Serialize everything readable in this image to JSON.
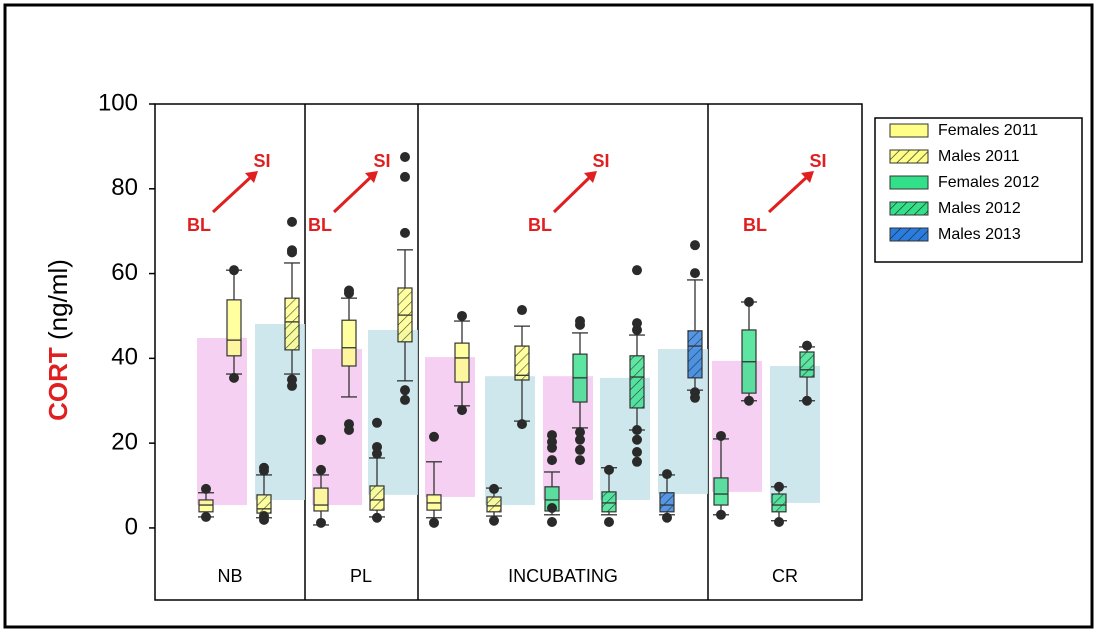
{
  "chart_data": {
    "type": "box",
    "ylabel_main": "CORT",
    "ylabel_unit": "(ng/ml)",
    "ylim": [
      -17,
      100
    ],
    "yticks": [
      0,
      20,
      40,
      60,
      80,
      100
    ],
    "series": [
      {
        "name": "Females 2011",
        "color": "#ffff88",
        "hatched": false
      },
      {
        "name": "Males 2011",
        "color": "#ffff88",
        "hatched": true
      },
      {
        "name": "Females 2012",
        "color": "#33e08a",
        "hatched": false
      },
      {
        "name": "Males 2012",
        "color": "#33e08a",
        "hatched": true
      },
      {
        "name": "Males 2013",
        "color": "#2a7de0",
        "hatched": true
      }
    ],
    "band_colors": [
      "#f5c8f0",
      "#c4e3ea"
    ],
    "stages": [
      {
        "label": "NB",
        "annotation": {
          "from": "BL",
          "to": "SI"
        },
        "groups": [
          {
            "series": 0,
            "band": [
              5.4,
              44.8
            ],
            "BL": {
              "low": 2.6,
              "q1": 3.8,
              "median": 5.4,
              "q3": 6.6,
              "high": 8.3,
              "outliers": [
                9.2,
                2.6
              ]
            },
            "SI": {
              "low": 36.3,
              "q1": 40.6,
              "median": 44.3,
              "q3": 53.8,
              "high": 60.8,
              "outliers": [
                35.4,
                60.8
              ]
            }
          },
          {
            "series": 1,
            "band": [
              6.6,
              48.1
            ],
            "BL": {
              "low": 2.4,
              "q1": 3.5,
              "median": 4.5,
              "q3": 7.8,
              "high": 12.5,
              "outliers": [
                14.2,
                13.5,
                1.9,
                2.8
              ]
            },
            "SI": {
              "low": 36.3,
              "q1": 42,
              "median": 48.6,
              "q3": 54.2,
              "high": 62.5,
              "outliers": [
                33.5,
                35,
                65,
                65.5,
                72.2
              ]
            }
          }
        ]
      },
      {
        "label": "PL",
        "annotation": {
          "from": "BL",
          "to": "SI"
        },
        "groups": [
          {
            "series": 0,
            "band": [
              5.4,
              42.2
            ],
            "BL": {
              "low": 0.7,
              "q1": 4,
              "median": 5.4,
              "q3": 9.4,
              "high": 12.5,
              "outliers": [
                20.8,
                13.7,
                1.2
              ]
            },
            "SI": {
              "low": 30.9,
              "q1": 38.2,
              "median": 42.5,
              "q3": 49,
              "high": 54.2,
              "outliers": [
                24.5,
                23.1,
                55.4,
                56
              ]
            }
          },
          {
            "series": 1,
            "band": [
              7.8,
              46.7
            ],
            "BL": {
              "low": 2.6,
              "q1": 4.2,
              "median": 6.6,
              "q3": 9.9,
              "high": 16.5,
              "outliers": [
                24.8,
                19.1,
                17.5,
                2.4
              ]
            },
            "SI": {
              "low": 34.7,
              "q1": 43.9,
              "median": 50.2,
              "q3": 56.6,
              "high": 65.6,
              "outliers": [
                30.2,
                32.5,
                69.6,
                82.8,
                87.5
              ]
            }
          }
        ]
      },
      {
        "label": "INCUBATING",
        "annotation": {
          "from": "BL",
          "to": "SI"
        },
        "groups": [
          {
            "series": 0,
            "band": [
              7.3,
              40.3
            ],
            "BL": {
              "low": 2.4,
              "q1": 4.2,
              "median": 5.9,
              "q3": 7.8,
              "high": 15.6,
              "outliers": [
                1.2,
                21.5
              ]
            },
            "SI": {
              "low": 28.8,
              "q1": 34.4,
              "median": 40.1,
              "q3": 43.6,
              "high": 48.8,
              "outliers": [
                27.8,
                50
              ]
            }
          },
          {
            "series": 1,
            "band": [
              5.4,
              35.8
            ],
            "BL": {
              "low": 2.8,
              "q1": 3.8,
              "median": 5.2,
              "q3": 7.3,
              "high": 9.4,
              "outliers": [
                1.7,
                9.2
              ]
            },
            "SI": {
              "low": 25.2,
              "q1": 34.9,
              "median": 36,
              "q3": 42.9,
              "high": 47.6,
              "outliers": [
                24.5,
                51.4
              ]
            }
          },
          {
            "series": 2,
            "band": [
              6.6,
              35.8
            ],
            "BL": {
              "low": 3.1,
              "q1": 4,
              "median": 6.6,
              "q3": 9.7,
              "high": 13.2,
              "outliers": [
                1.4,
                16,
                18.9,
                21.9,
                20.3,
                4.7
              ]
            },
            "SI": {
              "low": 23.6,
              "q1": 29.7,
              "median": 35.4,
              "q3": 41,
              "high": 46,
              "outliers": [
                16,
                18.4,
                20.8,
                22.6,
                47.9,
                48.8
              ]
            }
          },
          {
            "series": 3,
            "band": [
              6.6,
              35.4
            ],
            "BL": {
              "low": 3.1,
              "q1": 3.8,
              "median": 5.9,
              "q3": 8.5,
              "high": 14.2,
              "outliers": [
                1.4,
                13.7
              ]
            },
            "SI": {
              "low": 23.1,
              "q1": 28.3,
              "median": 35.6,
              "q3": 40.6,
              "high": 45.5,
              "outliers": [
                15.6,
                17.9,
                20.8,
                23.1,
                46.7,
                48.3,
                60.8
              ]
            }
          },
          {
            "series": 4,
            "band": [
              8,
              42.2
            ],
            "BL": {
              "low": 3.1,
              "q1": 3.8,
              "median": 5.4,
              "q3": 8.3,
              "high": 12.5,
              "outliers": [
                2.4,
                12.7
              ]
            },
            "SI": {
              "low": 32.5,
              "q1": 35.4,
              "median": 42.9,
              "q3": 46.5,
              "high": 58.5,
              "outliers": [
                30.7,
                32,
                60.1,
                66.7
              ]
            }
          }
        ]
      },
      {
        "label": "CR",
        "annotation": {
          "from": "BL",
          "to": "SI"
        },
        "groups": [
          {
            "series": 2,
            "band": [
              8.5,
              39.4
            ],
            "BL": {
              "low": 3.1,
              "q1": 5.4,
              "median": 8,
              "q3": 11.8,
              "high": 21,
              "outliers": [
                3.1,
                21.7
              ]
            },
            "SI": {
              "low": 30,
              "q1": 31.8,
              "median": 39.2,
              "q3": 46.7,
              "high": 53.3,
              "outliers": [
                30,
                53.3
              ]
            }
          },
          {
            "series": 3,
            "band": [
              5.9,
              38.2
            ],
            "BL": {
              "low": 1.7,
              "q1": 3.8,
              "median": 5.4,
              "q3": 8,
              "high": 9.7,
              "outliers": [
                1.4,
                9.7
              ]
            },
            "SI": {
              "low": 30,
              "q1": 35.6,
              "median": 37.3,
              "q3": 41.5,
              "high": 42.7,
              "outliers": [
                43,
                30
              ]
            }
          }
        ]
      }
    ]
  }
}
